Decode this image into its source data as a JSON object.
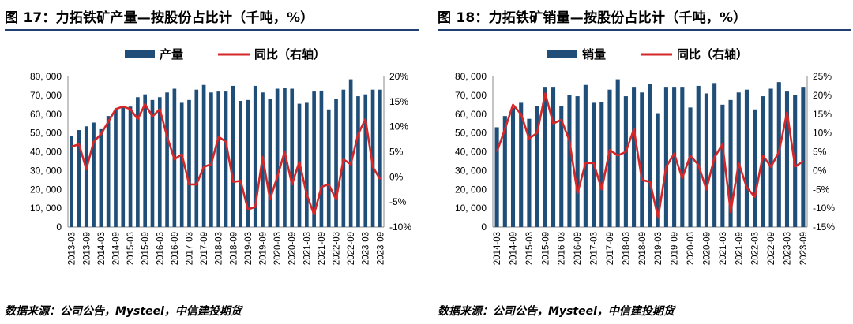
{
  "source_label": "数据来源：公司公告，Mysteel，中信建投期货",
  "colors": {
    "bar": "#1f4e79",
    "line": "#d62728",
    "rule": "#1f3f73",
    "text": "#000000"
  },
  "chart_data": [
    {
      "type": "bar+line",
      "title": "图 17：力拓铁矿产量—按股份占比计（千吨，%）",
      "legend": [
        "产量",
        "同比（右轴）"
      ],
      "legend_position": "top-center",
      "y_left": {
        "min": 0,
        "max": 80000,
        "step": 10000,
        "ticks": [
          "0",
          "10, 000",
          "20, 000",
          "30, 000",
          "40, 000",
          "50, 000",
          "60, 000",
          "70, 000",
          "80, 000"
        ]
      },
      "y_right": {
        "min": -10,
        "max": 20,
        "step": 5,
        "ticks": [
          "-10%",
          "-5%",
          "0%",
          "5%",
          "10%",
          "15%",
          "20%"
        ]
      },
      "x_tick_labels": [
        "2013-03",
        "2013-09",
        "2014-03",
        "2014-09",
        "2015-03",
        "2015-09",
        "2016-03",
        "2016-09",
        "2017-03",
        "2017-09",
        "2018-03",
        "2018-09",
        "2019-03",
        "2019-09",
        "2020-03",
        "2020-09",
        "2021-03",
        "2021-09",
        "2022-03",
        "2022-09",
        "2023-03",
        "2023-09"
      ],
      "categories": [
        "2013-03",
        "2013-06",
        "2013-09",
        "2013-12",
        "2014-03",
        "2014-06",
        "2014-09",
        "2014-12",
        "2015-03",
        "2015-06",
        "2015-09",
        "2015-12",
        "2016-03",
        "2016-06",
        "2016-09",
        "2016-12",
        "2017-03",
        "2017-06",
        "2017-09",
        "2017-12",
        "2018-03",
        "2018-06",
        "2018-09",
        "2018-12",
        "2019-03",
        "2019-06",
        "2019-09",
        "2019-12",
        "2020-03",
        "2020-06",
        "2020-09",
        "2020-12",
        "2021-03",
        "2021-06",
        "2021-09",
        "2021-12",
        "2022-03",
        "2022-06",
        "2022-09",
        "2022-12",
        "2023-03",
        "2023-06",
        "2023-09"
      ],
      "series": [
        {
          "name": "产量",
          "axis": "left",
          "type": "bar",
          "values": [
            48500,
            51500,
            53500,
            55500,
            52000,
            59000,
            62500,
            64000,
            64000,
            69000,
            70500,
            67500,
            69000,
            71500,
            73500,
            66000,
            67500,
            73000,
            75500,
            71500,
            72000,
            72000,
            75000,
            67000,
            67500,
            75000,
            71500,
            68000,
            73500,
            74000,
            73500,
            65500,
            66000,
            72000,
            72500,
            62500,
            68000,
            73000,
            78500,
            69500,
            70500,
            73000,
            73000
          ]
        },
        {
          "name": "同比（右轴）",
          "axis": "right",
          "type": "line",
          "values": [
            6.0,
            6.5,
            1.5,
            7.0,
            8.5,
            11.0,
            13.5,
            14.0,
            13.5,
            11.5,
            14.5,
            12.0,
            13.5,
            8.0,
            3.5,
            4.5,
            -1.5,
            -1.5,
            2.0,
            2.5,
            8.0,
            7.0,
            -1.0,
            -0.8,
            -6.5,
            -6.0,
            4.0,
            -4.5,
            0.0,
            5.0,
            -1.5,
            3.0,
            -3.5,
            -7.5,
            -2.0,
            -1.5,
            -4.5,
            3.5,
            2.5,
            8.5,
            11.5,
            2.0,
            -0.5
          ]
        }
      ]
    },
    {
      "type": "bar+line",
      "title": "图 18：力拓铁矿销量—按股份占比计（千吨，%）",
      "legend": [
        "销量",
        "同比（右轴）"
      ],
      "legend_position": "top-center",
      "y_left": {
        "min": 0,
        "max": 80000,
        "step": 10000,
        "ticks": [
          "0",
          "10, 000",
          "20, 000",
          "30, 000",
          "40, 000",
          "50, 000",
          "60, 000",
          "70, 000",
          "80, 000"
        ]
      },
      "y_right": {
        "min": -15,
        "max": 25,
        "step": 5,
        "ticks": [
          "-15%",
          "-10%",
          "-5%",
          "0%",
          "5%",
          "10%",
          "15%",
          "20%",
          "25%"
        ]
      },
      "x_tick_labels": [
        "2014-03",
        "2014-09",
        "2015-03",
        "2015-09",
        "2016-03",
        "2016-09",
        "2017-03",
        "2017-09",
        "2018-03",
        "2018-09",
        "2019-03",
        "2019-09",
        "2020-03",
        "2020-09",
        "2021-03",
        "2021-09",
        "2022-03",
        "2022-09",
        "2023-03",
        "2023-09"
      ],
      "categories": [
        "2014-03",
        "2014-06",
        "2014-09",
        "2014-12",
        "2015-03",
        "2015-06",
        "2015-09",
        "2015-12",
        "2016-03",
        "2016-06",
        "2016-09",
        "2016-12",
        "2017-03",
        "2017-06",
        "2017-09",
        "2017-12",
        "2018-03",
        "2018-06",
        "2018-09",
        "2018-12",
        "2019-03",
        "2019-06",
        "2019-09",
        "2019-12",
        "2020-03",
        "2020-06",
        "2020-09",
        "2020-12",
        "2021-03",
        "2021-06",
        "2021-09",
        "2021-12",
        "2022-03",
        "2022-06",
        "2022-09",
        "2022-12",
        "2023-03",
        "2023-06",
        "2023-09"
      ],
      "series": [
        {
          "name": "销量",
          "axis": "left",
          "type": "bar",
          "values": [
            53000,
            59000,
            63500,
            66000,
            57500,
            64500,
            74500,
            74500,
            64500,
            70000,
            69500,
            75500,
            66000,
            66500,
            73000,
            78500,
            69500,
            74500,
            71500,
            76000,
            60500,
            74500,
            74500,
            74500,
            63500,
            75000,
            71000,
            76500,
            65000,
            67500,
            71500,
            73000,
            62500,
            69500,
            73500,
            77000,
            72000,
            70000,
            74500
          ]
        },
        {
          "name": "同比（右轴）",
          "axis": "right",
          "type": "line",
          "values": [
            5.0,
            11.0,
            17.5,
            15.0,
            8.5,
            10.0,
            20.5,
            12.5,
            13.5,
            8.0,
            -6.0,
            2.0,
            2.0,
            -5.0,
            5.5,
            4.0,
            5.0,
            11.0,
            -2.5,
            -3.0,
            -12.5,
            1.0,
            4.5,
            -2.0,
            4.0,
            1.5,
            -5.0,
            3.5,
            7.0,
            -11.0,
            2.0,
            -4.5,
            -7.0,
            4.0,
            1.0,
            5.0,
            15.5,
            1.0,
            2.5
          ]
        }
      ]
    }
  ]
}
